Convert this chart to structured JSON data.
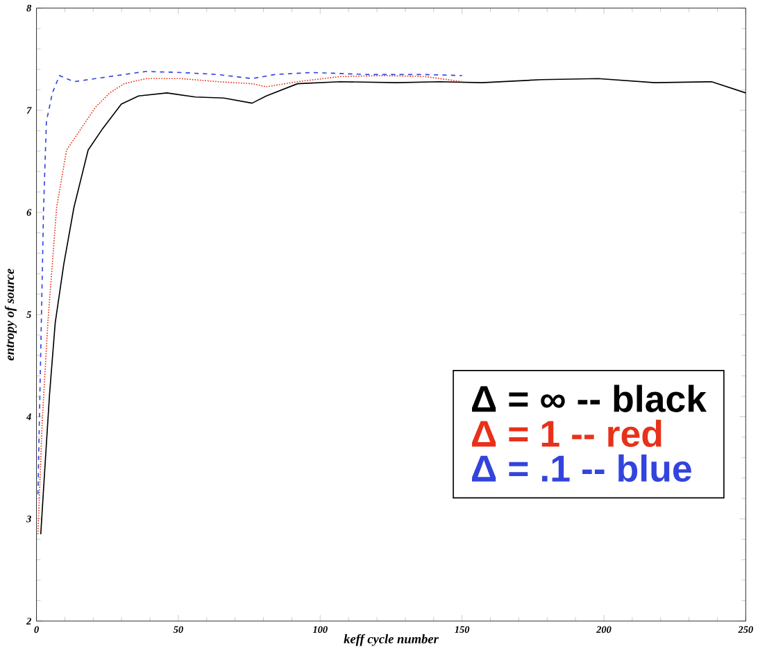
{
  "chart_data": {
    "type": "line",
    "xlabel": "keff cycle number",
    "ylabel": "entropy of source",
    "xlim": [
      0,
      250
    ],
    "ylim": [
      2,
      8
    ],
    "xticks": [
      0,
      50,
      100,
      150,
      200,
      250
    ],
    "yticks": [
      2,
      3,
      4,
      5,
      6,
      7,
      8
    ],
    "grid": false,
    "legend": "right",
    "marker": "none",
    "series": [
      {
        "name": "Δ = ∞ -- black",
        "color": "#000000",
        "line_style": "solid",
        "x": [
          1.5,
          3,
          4.6,
          6.6,
          9.6,
          13.2,
          18.2,
          23.3,
          29.9,
          36,
          46,
          56,
          66,
          76,
          81,
          92,
          107,
          127,
          142,
          157,
          178,
          198,
          218,
          238,
          250
        ],
        "values": [
          2.85,
          3.52,
          4.22,
          4.92,
          5.49,
          6.05,
          6.61,
          6.82,
          7.06,
          7.14,
          7.17,
          7.13,
          7.12,
          7.07,
          7.14,
          7.26,
          7.28,
          7.27,
          7.28,
          7.27,
          7.3,
          7.31,
          7.27,
          7.28,
          7.17
        ]
      },
      {
        "name": "Δ = 1  -- red",
        "color": "#e8311a",
        "line_style": "dotted",
        "x": [
          0.5,
          2,
          4,
          7.1,
          10.6,
          15.7,
          20.8,
          25.8,
          30.9,
          38.5,
          51,
          64,
          76,
          81,
          92,
          107,
          122,
          137,
          150
        ],
        "values": [
          2.85,
          3.94,
          4.92,
          6.05,
          6.61,
          6.82,
          7.03,
          7.17,
          7.26,
          7.31,
          7.31,
          7.28,
          7.26,
          7.23,
          7.28,
          7.33,
          7.34,
          7.33,
          7.28
        ]
      },
      {
        "name": "Δ = .1 -- blue",
        "color": "#3344dd",
        "line_style": "dashed",
        "x": [
          0.5,
          1.5,
          2.5,
          3.5,
          5.6,
          8.1,
          13.2,
          20.8,
          28.3,
          38.5,
          51,
          64,
          76,
          84,
          97,
          117,
          137,
          150
        ],
        "values": [
          3.24,
          4.64,
          6.05,
          6.89,
          7.17,
          7.34,
          7.28,
          7.31,
          7.34,
          7.38,
          7.37,
          7.35,
          7.31,
          7.35,
          7.37,
          7.35,
          7.35,
          7.34
        ]
      }
    ]
  }
}
